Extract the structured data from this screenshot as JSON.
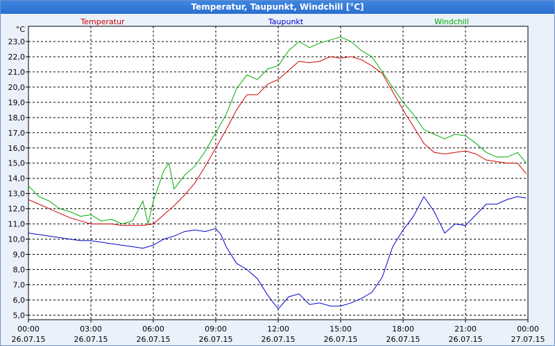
{
  "window": {
    "title": "Temperatur, Taupunkt, Windchill [°C]"
  },
  "chart_data": {
    "type": "line",
    "title": "Temperatur, Taupunkt, Windchill [°C]",
    "ylabel": "°C",
    "ylim": [
      4.7,
      24.0
    ],
    "xlim": [
      "26.07.15 00:00",
      "27.07.15 00:00"
    ],
    "grid": true,
    "legend_placement": "top",
    "y_ticks": [
      "5,0",
      "6,0",
      "7,0",
      "8,0",
      "9,0",
      "10,0",
      "11,0",
      "12,0",
      "13,0",
      "14,0",
      "15,0",
      "16,0",
      "17,0",
      "18,0",
      "19,0",
      "20,0",
      "21,0",
      "22,0",
      "23,0"
    ],
    "x_ticks": [
      {
        "time": "00:00",
        "date": "26.07.15"
      },
      {
        "time": "03:00",
        "date": "26.07.15"
      },
      {
        "time": "06:00",
        "date": "26.07.15"
      },
      {
        "time": "09:00",
        "date": "26.07.15"
      },
      {
        "time": "12:00",
        "date": "26.07.15"
      },
      {
        "time": "15:00",
        "date": "26.07.15"
      },
      {
        "time": "18:00",
        "date": "26.07.15"
      },
      {
        "time": "21:00",
        "date": "26.07.15"
      },
      {
        "time": "00:00",
        "date": "27.07.15"
      }
    ],
    "series": [
      {
        "name": "Temperatur",
        "color": "#cc0000",
        "x": [
          "00:00",
          "00:30",
          "01:00",
          "01:30",
          "02:00",
          "02:30",
          "03:00",
          "03:30",
          "04:00",
          "04:30",
          "05:00",
          "05:30",
          "06:00",
          "06:30",
          "07:00",
          "07:30",
          "08:00",
          "08:30",
          "09:00",
          "09:30",
          "10:00",
          "10:30",
          "11:00",
          "11:30",
          "12:00",
          "12:30",
          "13:00",
          "13:30",
          "14:00",
          "14:30",
          "15:00",
          "15:30",
          "16:00",
          "16:30",
          "17:00",
          "17:30",
          "18:00",
          "18:30",
          "19:00",
          "19:30",
          "20:00",
          "20:30",
          "21:00",
          "21:30",
          "22:00",
          "22:30",
          "23:00",
          "23:30",
          "23:55"
        ],
        "y": [
          12.6,
          12.3,
          12.0,
          11.7,
          11.4,
          11.2,
          11.0,
          11.0,
          11.0,
          10.9,
          10.9,
          10.9,
          11.0,
          11.6,
          12.2,
          12.9,
          13.7,
          14.8,
          16.0,
          17.2,
          18.5,
          19.5,
          19.5,
          20.2,
          20.5,
          21.1,
          21.7,
          21.6,
          21.7,
          22.0,
          21.9,
          22.0,
          21.8,
          21.4,
          20.9,
          19.7,
          18.5,
          17.4,
          16.3,
          15.7,
          15.6,
          15.7,
          15.8,
          15.6,
          15.2,
          15.1,
          15.0,
          15.0,
          14.3
        ]
      },
      {
        "name": "Taupunkt",
        "color": "#0000cc",
        "x": [
          "00:00",
          "00:30",
          "01:00",
          "01:30",
          "02:00",
          "02:30",
          "03:00",
          "03:30",
          "04:00",
          "04:30",
          "05:00",
          "05:30",
          "06:00",
          "06:30",
          "07:00",
          "07:30",
          "08:00",
          "08:30",
          "09:00",
          "09:15",
          "09:30",
          "10:00",
          "10:30",
          "11:00",
          "11:30",
          "12:00",
          "12:30",
          "13:00",
          "13:30",
          "14:00",
          "14:30",
          "15:00",
          "15:30",
          "16:00",
          "16:30",
          "17:00",
          "17:30",
          "18:00",
          "18:30",
          "19:00",
          "19:30",
          "20:00",
          "20:30",
          "21:00",
          "21:30",
          "22:00",
          "22:30",
          "23:00",
          "23:30",
          "23:55"
        ],
        "y": [
          10.4,
          10.3,
          10.2,
          10.1,
          10.0,
          9.9,
          9.9,
          9.8,
          9.7,
          9.6,
          9.5,
          9.4,
          9.6,
          10.0,
          10.2,
          10.5,
          10.6,
          10.5,
          10.7,
          10.3,
          9.5,
          8.4,
          8.0,
          7.4,
          6.3,
          5.4,
          6.2,
          6.4,
          5.7,
          5.8,
          5.6,
          5.6,
          5.8,
          6.1,
          6.5,
          7.5,
          9.5,
          10.6,
          11.5,
          12.8,
          11.8,
          10.4,
          11.0,
          10.9,
          11.6,
          12.3,
          12.3,
          12.6,
          12.8,
          12.7
        ]
      },
      {
        "name": "Windchill",
        "color": "#00aa00",
        "x": [
          "00:00",
          "00:30",
          "01:00",
          "01:30",
          "02:00",
          "02:30",
          "03:00",
          "03:30",
          "04:00",
          "04:30",
          "05:00",
          "05:30",
          "05:45",
          "06:00",
          "06:30",
          "06:45",
          "07:00",
          "07:30",
          "08:00",
          "08:30",
          "09:00",
          "09:30",
          "10:00",
          "10:30",
          "11:00",
          "11:30",
          "12:00",
          "12:30",
          "13:00",
          "13:30",
          "14:00",
          "14:30",
          "15:00",
          "15:30",
          "16:00",
          "16:30",
          "17:00",
          "17:30",
          "18:00",
          "18:30",
          "19:00",
          "19:30",
          "20:00",
          "20:30",
          "21:00",
          "21:30",
          "22:00",
          "22:30",
          "23:00",
          "23:30",
          "23:55"
        ],
        "y": [
          13.5,
          12.8,
          12.5,
          12.0,
          11.8,
          11.5,
          11.6,
          11.2,
          11.3,
          11.0,
          11.2,
          12.5,
          11.0,
          12.5,
          14.5,
          15.0,
          13.3,
          14.2,
          14.8,
          15.8,
          17.0,
          18.2,
          19.9,
          20.8,
          20.5,
          21.2,
          21.4,
          22.4,
          23.0,
          22.6,
          22.9,
          23.1,
          23.3,
          23.0,
          22.4,
          22.0,
          21.0,
          20.0,
          19.0,
          18.2,
          17.2,
          16.9,
          16.6,
          16.9,
          16.8,
          16.3,
          15.7,
          15.4,
          15.4,
          15.7,
          15.0
        ]
      }
    ]
  }
}
